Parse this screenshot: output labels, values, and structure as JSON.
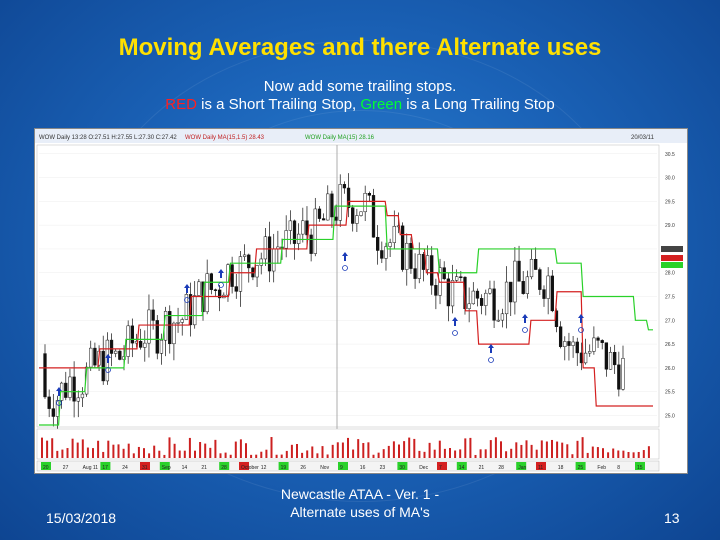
{
  "slide": {
    "title": "Moving Averages and there Alternate uses",
    "subtitle_line1": "Now add some trailing stops.",
    "subtitle_line2": {
      "part1": "RED",
      "part2": " is a Short Trailing Stop, ",
      "part3": "Green",
      "part4": " is a Long Trailing Stop"
    },
    "footer": {
      "date": "15/03/2018",
      "center_line1": "Newcastle ATAA - Ver. 1 -",
      "center_line2": "Alternate uses of MA's",
      "page_number": "13"
    }
  },
  "colors": {
    "title": "#ffe000",
    "red_stop": "#d42020",
    "green_stop": "#2ad12a",
    "background": "#1b63b8"
  },
  "chart_header": {
    "legend_text_1": "WOW Daily  13:28 O:27.51 H:27.55 L:27.30 C:27.42",
    "legend_text_2": "WOW Daily MA(15,1.5) 28.43",
    "legend_text_3": "WOW Daily MA(15) 28.16",
    "date_right": "20/03/11"
  },
  "price_axis": [
    "30.5",
    "30.0",
    "29.5",
    "29.0",
    "28.5",
    "28.0",
    "27.5",
    "27.0",
    "26.5",
    "26.0",
    "25.5",
    "25.0"
  ],
  "date_axis": [
    "20",
    "27",
    "Aug 11",
    "17",
    "24",
    "31",
    "Sep",
    "14",
    "21",
    "28",
    "October",
    "12",
    "19",
    "26",
    "Nov",
    "9",
    "16",
    "23",
    "30",
    "Dec",
    "7",
    "14",
    "21",
    "28",
    "Jan",
    "11",
    "18",
    "25",
    "Feb",
    "8",
    "15"
  ],
  "chart_data": {
    "type": "line",
    "series": [
      {
        "name": "RED",
        "color": "#d42020",
        "y": [
          26.0,
          26.0,
          26.0,
          26.0,
          26.0,
          26.4,
          26.4,
          26.4,
          26.9,
          26.9,
          26.9,
          26.9,
          27.5,
          27.5,
          27.5,
          28.0,
          28.0,
          28.5,
          28.5,
          28.5,
          28.5,
          29.0,
          29.0,
          29.0,
          29.5,
          29.5,
          29.5,
          29.2,
          28.8,
          28.5,
          28.0,
          27.8,
          27.8,
          27.2,
          26.5,
          26.5,
          26.5,
          26.5,
          27.0,
          27.0,
          27.6,
          27.6,
          26.0,
          25.2,
          25.2,
          25.2,
          25.2,
          25.2
        ]
      },
      {
        "name": "Green",
        "color": "#2ad12a",
        "y": [
          24.8,
          24.8,
          25.5,
          25.5,
          26.0,
          26.0,
          26.0,
          26.6,
          26.6,
          26.6,
          27.1,
          27.1,
          27.1,
          27.8,
          27.8,
          28.2,
          28.2,
          28.2,
          28.2,
          28.7,
          28.7,
          28.7,
          28.7,
          29.4,
          29.4,
          29.4,
          29.4,
          28.5,
          28.5,
          28.5,
          28.5,
          28.0,
          28.0,
          28.0,
          28.5,
          28.5,
          28.5,
          28.5,
          28.5,
          28.5,
          28.2,
          28.2,
          27.5,
          27.5,
          27.5,
          27.5,
          27.0,
          26.8
        ]
      }
    ],
    "ylim": [
      24.8,
      30.6
    ],
    "xlabel": "",
    "ylabel": ""
  }
}
